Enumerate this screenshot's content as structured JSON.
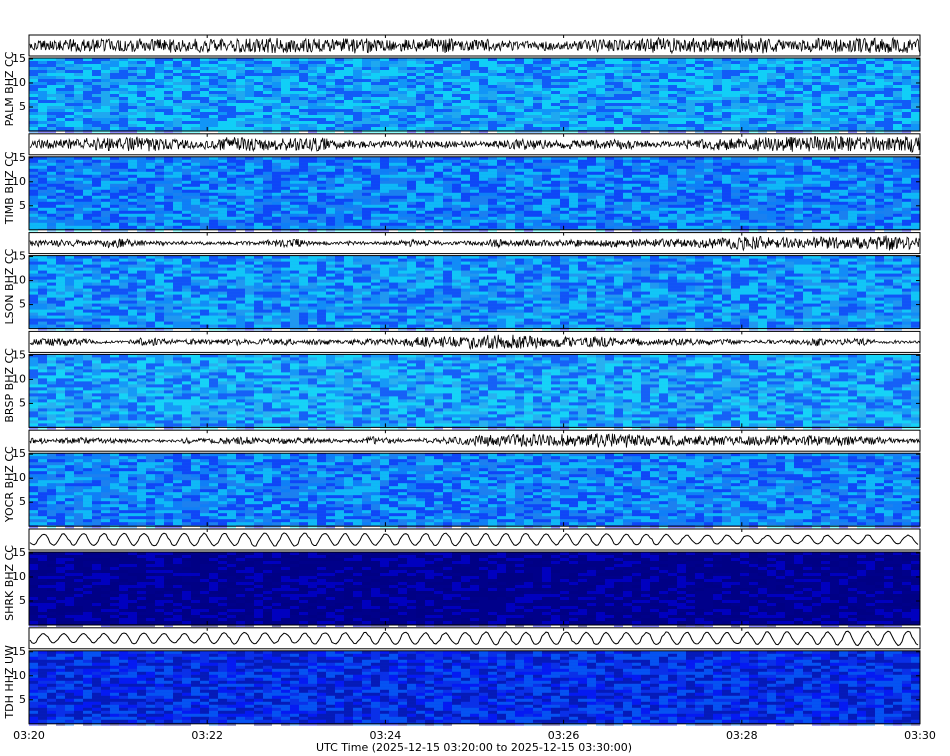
{
  "chart_data": {
    "type": "spectrogram",
    "xlabel": "UTC Time (2025-12-15 03:20:00 to 2025-12-15 03:30:00)",
    "xlim": [
      0,
      10
    ],
    "xticks": [
      {
        "value": 0,
        "label": "03:20"
      },
      {
        "value": 2,
        "label": "03:22"
      },
      {
        "value": 4,
        "label": "03:24"
      },
      {
        "value": 6,
        "label": "03:26"
      },
      {
        "value": 8,
        "label": "03:28"
      },
      {
        "value": 10,
        "label": "03:30"
      }
    ],
    "ylim": [
      0,
      15.2
    ],
    "yticks": [
      5,
      10,
      15
    ],
    "colormap": [
      "#00007f",
      "#0000ff",
      "#007fff",
      "#00ffff",
      "#7fff7f",
      "#ffff00"
    ],
    "panels": [
      {
        "name": "PALM BHZ CC",
        "color": "#1fa8f0"
      },
      {
        "name": "TIMB BHZ CC",
        "color": "#1a80f0"
      },
      {
        "name": "LSON BHZ CC",
        "color": "#2098f0"
      },
      {
        "name": "BRSP BHZ CC",
        "color": "#28b0f0"
      },
      {
        "name": "YOCR BHZ CC",
        "color": "#1c80f0"
      },
      {
        "name": "SHRK BHZ CC",
        "color": "#00008a"
      },
      {
        "name": "TDH HHZ UW",
        "color": "#0a30e8"
      }
    ]
  }
}
